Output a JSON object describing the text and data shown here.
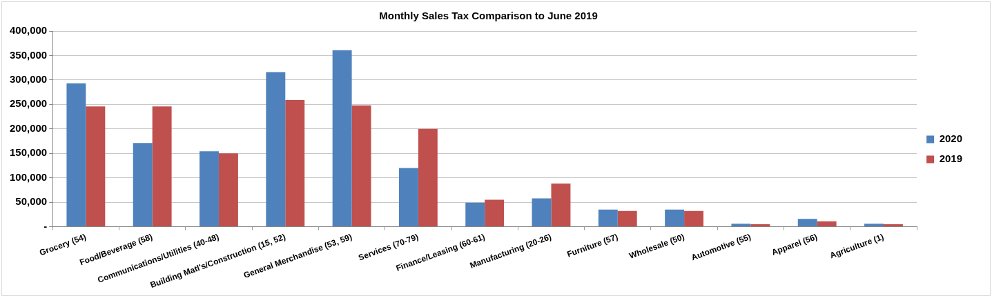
{
  "chart_data": {
    "type": "bar",
    "title": "Monthly Sales Tax Comparison to June 2019",
    "categories": [
      "Grocery (54)",
      "Food/Beverage (58)",
      "Communications/Utilities (40-48)",
      "Building Matl's/Construction (15, 52)",
      "General Merchandise (53, 59)",
      "Services (70-79)",
      "Finance/Leasing (60-61)",
      "Manufacturing (20-26)",
      "Furniture (57)",
      "Wholesale (50)",
      "Automotive (55)",
      "Apparel (56)",
      "Agriculture (1)"
    ],
    "series": [
      {
        "name": "2020",
        "color": "#4f81bd",
        "values": [
          293000,
          171000,
          154000,
          316000,
          361000,
          120000,
          49000,
          58000,
          35000,
          35000,
          6000,
          16000,
          6000
        ]
      },
      {
        "name": "2019",
        "color": "#c0504d",
        "values": [
          246000,
          246000,
          150000,
          259000,
          248000,
          200000,
          55000,
          88000,
          32000,
          32000,
          5000,
          11000,
          5000
        ]
      }
    ],
    "ylim": [
      0,
      400000
    ],
    "yticks": [
      {
        "value": 0,
        "label": "-"
      },
      {
        "value": 50000,
        "label": "50,000"
      },
      {
        "value": 100000,
        "label": "100,000"
      },
      {
        "value": 150000,
        "label": "150,000"
      },
      {
        "value": 200000,
        "label": "200,000"
      },
      {
        "value": 250000,
        "label": "250,000"
      },
      {
        "value": 300000,
        "label": "300,000"
      },
      {
        "value": 350000,
        "label": "350,000"
      },
      {
        "value": 400000,
        "label": "400,000"
      }
    ],
    "grid": "y",
    "legend": "right"
  }
}
